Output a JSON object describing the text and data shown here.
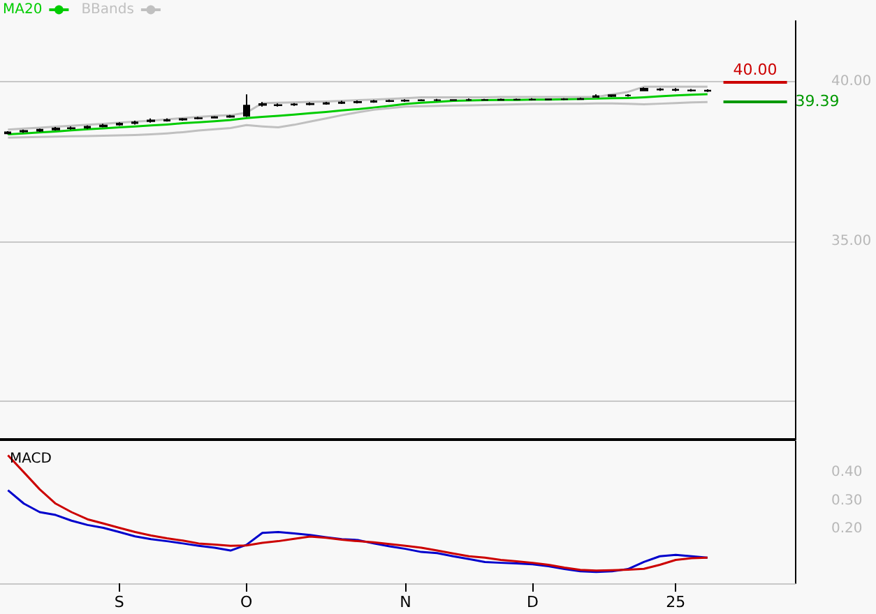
{
  "chart_data": [
    {
      "type": "candlestick",
      "color": "#000000",
      "ylim": [
        28.8,
        41.9
      ],
      "yticks": [
        {
          "value": 40,
          "label": "40.00"
        },
        {
          "value": 35,
          "label": "35.00"
        },
        {
          "value": 30,
          "label": null
        }
      ],
      "grid": "y",
      "legend": "top left",
      "tick_labels": "y",
      "categories": [
        null,
        null,
        null,
        null,
        null,
        null,
        null,
        null,
        null,
        null,
        null,
        null,
        null,
        null,
        null,
        null,
        null,
        null,
        null,
        null,
        null,
        null,
        null,
        null,
        null,
        null,
        null,
        null,
        null,
        null,
        null,
        null,
        null,
        null,
        null,
        null,
        null,
        null,
        null,
        null,
        null,
        null,
        null,
        null,
        null,
        null,
        null,
        null,
        null,
        null
      ],
      "ohlc": [
        [
          38.38,
          38.45,
          38.35,
          38.42
        ],
        [
          38.44,
          38.5,
          38.4,
          38.46
        ],
        [
          38.46,
          38.53,
          38.43,
          38.5
        ],
        [
          38.5,
          38.58,
          38.47,
          38.54
        ],
        [
          38.54,
          38.6,
          38.5,
          38.55
        ],
        [
          38.56,
          38.63,
          38.52,
          38.59
        ],
        [
          38.6,
          38.68,
          38.57,
          38.63
        ],
        [
          38.65,
          38.73,
          38.62,
          38.69
        ],
        [
          38.7,
          38.78,
          38.66,
          38.73
        ],
        [
          38.76,
          38.85,
          38.72,
          38.79
        ],
        [
          38.78,
          38.85,
          38.75,
          38.8
        ],
        [
          38.81,
          38.86,
          38.78,
          38.83
        ],
        [
          38.85,
          38.9,
          38.82,
          38.86
        ],
        [
          38.87,
          38.92,
          38.85,
          38.89
        ],
        [
          38.9,
          38.96,
          38.87,
          38.92
        ],
        [
          38.93,
          39.6,
          38.9,
          39.25
        ],
        [
          39.3,
          39.36,
          39.22,
          39.27
        ],
        [
          39.27,
          39.32,
          39.22,
          39.26
        ],
        [
          39.28,
          39.33,
          39.24,
          39.29
        ],
        [
          39.29,
          39.35,
          39.26,
          39.31
        ],
        [
          39.31,
          39.37,
          39.28,
          39.33
        ],
        [
          39.33,
          39.4,
          39.3,
          39.35
        ],
        [
          39.35,
          39.41,
          39.32,
          39.37
        ],
        [
          39.37,
          39.43,
          39.34,
          39.39
        ],
        [
          39.39,
          39.44,
          39.36,
          39.4
        ],
        [
          39.4,
          39.45,
          39.37,
          39.41
        ],
        [
          39.41,
          39.45,
          39.39,
          39.42
        ],
        [
          39.42,
          39.46,
          39.39,
          39.42
        ],
        [
          39.42,
          39.45,
          39.4,
          39.43
        ],
        [
          39.43,
          39.47,
          39.4,
          39.43
        ],
        [
          39.43,
          39.46,
          39.41,
          39.43
        ],
        [
          39.43,
          39.47,
          39.41,
          39.44
        ],
        [
          39.44,
          39.47,
          39.42,
          39.44
        ],
        [
          39.44,
          39.48,
          39.41,
          39.44
        ],
        [
          39.44,
          39.47,
          39.42,
          39.45
        ],
        [
          39.45,
          39.48,
          39.42,
          39.45
        ],
        [
          39.45,
          39.5,
          39.43,
          39.46
        ],
        [
          39.52,
          39.6,
          39.5,
          39.55
        ],
        [
          39.55,
          39.6,
          39.52,
          39.58
        ],
        [
          39.57,
          39.61,
          39.53,
          39.57
        ],
        [
          39.72,
          39.82,
          39.7,
          39.78
        ],
        [
          39.76,
          39.8,
          39.71,
          39.75
        ],
        [
          39.75,
          39.8,
          39.7,
          39.74
        ],
        [
          39.73,
          39.77,
          39.69,
          39.72
        ],
        [
          39.72,
          39.76,
          39.68,
          39.71
        ],
        null,
        null,
        null,
        null,
        null
      ],
      "series": [
        {
          "type": "line",
          "name": "MA20",
          "color": "#00cc00",
          "values": [
            38.35,
            38.38,
            38.41,
            38.44,
            38.48,
            38.51,
            38.54,
            38.57,
            38.6,
            38.63,
            38.66,
            38.7,
            38.73,
            38.76,
            38.8,
            38.86,
            38.9,
            38.93,
            38.97,
            39.01,
            39.05,
            39.1,
            39.14,
            39.19,
            39.24,
            39.3,
            39.34,
            39.37,
            39.4,
            39.41,
            39.42,
            39.43,
            39.43,
            39.44,
            39.44,
            39.45,
            39.46,
            39.47,
            39.48,
            39.49,
            39.51,
            39.54,
            39.57,
            39.59,
            39.61,
            null,
            null,
            null,
            null,
            null
          ]
        },
        {
          "type": "line",
          "name": "BBands",
          "color": "#c0c0c0",
          "values": [
            38.5,
            38.53,
            38.56,
            38.59,
            38.62,
            38.65,
            38.68,
            38.72,
            38.75,
            38.78,
            38.82,
            38.86,
            38.9,
            38.93,
            38.95,
            39.03,
            39.33,
            39.34,
            39.35,
            39.37,
            39.38,
            39.4,
            39.42,
            39.44,
            39.46,
            39.48,
            39.51,
            39.51,
            39.51,
            39.51,
            39.51,
            39.52,
            39.52,
            39.52,
            39.52,
            39.52,
            39.52,
            39.52,
            39.6,
            39.68,
            39.84,
            39.84,
            39.84,
            39.84,
            39.84,
            null,
            null,
            null,
            null,
            null
          ]
        },
        {
          "type": "line",
          "color": "#c0c0c0",
          "values": [
            38.25,
            38.26,
            38.27,
            38.28,
            38.29,
            38.3,
            38.31,
            38.32,
            38.33,
            38.35,
            38.38,
            38.42,
            38.47,
            38.51,
            38.55,
            38.64,
            38.6,
            38.57,
            38.65,
            38.75,
            38.85,
            38.95,
            39.04,
            39.12,
            39.17,
            39.22,
            39.23,
            39.24,
            39.25,
            39.26,
            39.27,
            39.28,
            39.29,
            39.3,
            39.3,
            39.31,
            39.31,
            39.32,
            39.32,
            39.31,
            39.29,
            39.31,
            39.33,
            39.35,
            39.36,
            null,
            null,
            null,
            null,
            null
          ]
        }
      ],
      "marker": "none",
      "ref_lines": [
        {
          "axis": "y",
          "value": 40.0,
          "label": "40.00",
          "color": "#cc0000"
        },
        {
          "axis": "y",
          "value": 39.39,
          "label": "39.39",
          "color": "#009900"
        }
      ]
    },
    {
      "type": "line",
      "title": "MACD",
      "ylim": [
        0.01,
        0.51
      ],
      "yticks": [
        {
          "value": 0.4,
          "label": "0.40"
        },
        {
          "value": 0.3,
          "label": "0.30"
        },
        {
          "value": 0.2,
          "label": "0.20"
        }
      ],
      "categories": [
        null,
        null,
        null,
        null,
        null,
        null,
        null,
        "S",
        null,
        null,
        null,
        null,
        null,
        null,
        null,
        "O",
        null,
        null,
        null,
        null,
        null,
        null,
        null,
        null,
        null,
        "N",
        null,
        null,
        null,
        null,
        null,
        null,
        null,
        "D",
        null,
        null,
        null,
        null,
        null,
        null,
        null,
        null,
        "25",
        null,
        null,
        null,
        null,
        null,
        null,
        null
      ],
      "marker": "none",
      "series": [
        {
          "color": "#0000cc",
          "values": [
            0.337,
            0.29,
            0.26,
            0.25,
            0.23,
            0.215,
            0.205,
            0.19,
            0.175,
            0.165,
            0.158,
            0.15,
            0.142,
            0.135,
            0.125,
            0.145,
            0.187,
            0.19,
            0.185,
            0.18,
            0.172,
            0.165,
            0.162,
            0.15,
            0.14,
            0.131,
            0.12,
            0.116,
            0.105,
            0.095,
            0.085,
            0.082,
            0.08,
            0.077,
            0.07,
            0.06,
            0.052,
            0.05,
            0.052,
            0.06,
            0.085,
            0.105,
            0.11,
            0.105,
            0.1,
            null,
            null,
            null,
            null,
            null
          ]
        },
        {
          "color": "#cc0000",
          "values": [
            0.46,
            0.4,
            0.34,
            0.29,
            0.26,
            0.235,
            0.22,
            0.205,
            0.19,
            0.178,
            0.168,
            0.16,
            0.15,
            0.146,
            0.142,
            0.143,
            0.152,
            0.158,
            0.166,
            0.174,
            0.17,
            0.163,
            0.158,
            0.154,
            0.148,
            0.142,
            0.135,
            0.125,
            0.115,
            0.105,
            0.1,
            0.092,
            0.087,
            0.082,
            0.075,
            0.065,
            0.057,
            0.055,
            0.056,
            0.058,
            0.061,
            0.075,
            0.092,
            0.098,
            0.1,
            null,
            null,
            null,
            null,
            null
          ]
        }
      ]
    }
  ]
}
